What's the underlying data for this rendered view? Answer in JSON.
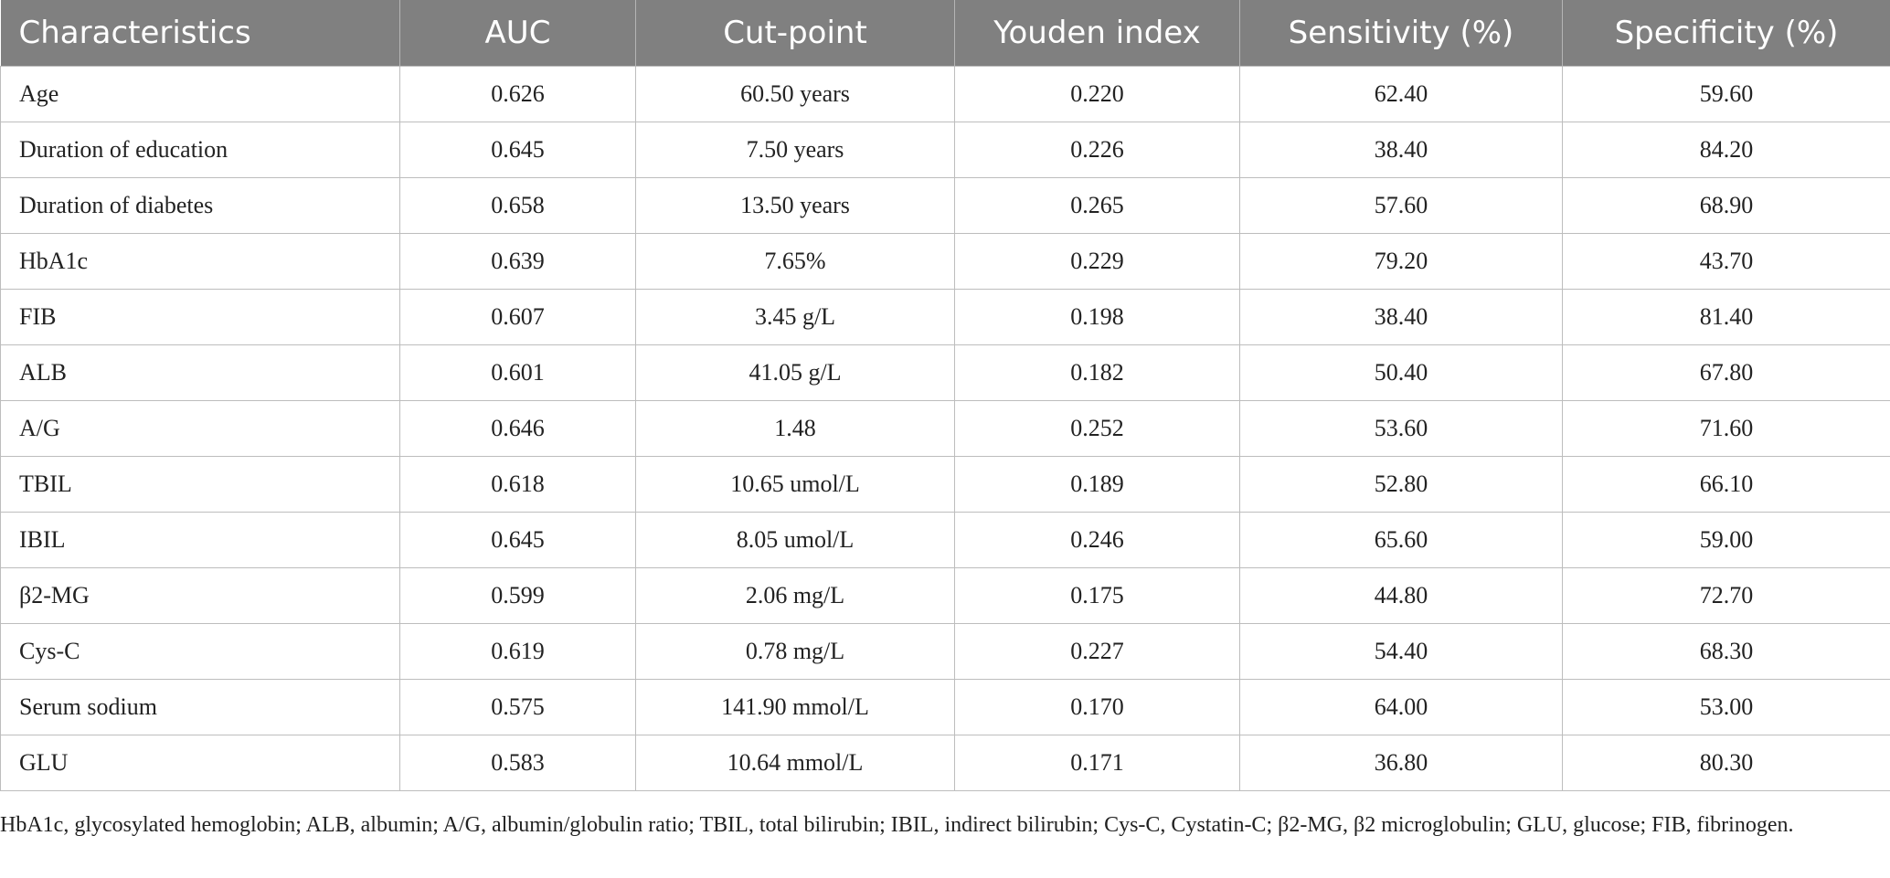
{
  "table": {
    "headers": [
      "Characteristics",
      "AUC",
      "Cut-point",
      "Youden index",
      "Sensitivity (%)",
      "Specificity (%)"
    ],
    "rows": [
      [
        "Age",
        "0.626",
        "60.50 years",
        "0.220",
        "62.40",
        "59.60"
      ],
      [
        "Duration of education",
        "0.645",
        "7.50 years",
        "0.226",
        "38.40",
        "84.20"
      ],
      [
        "Duration of diabetes",
        "0.658",
        "13.50 years",
        "0.265",
        "57.60",
        "68.90"
      ],
      [
        "HbA1c",
        "0.639",
        "7.65%",
        "0.229",
        "79.20",
        "43.70"
      ],
      [
        "FIB",
        "0.607",
        "3.45 g/L",
        "0.198",
        "38.40",
        "81.40"
      ],
      [
        "ALB",
        "0.601",
        "41.05 g/L",
        "0.182",
        "50.40",
        "67.80"
      ],
      [
        "A/G",
        "0.646",
        "1.48",
        "0.252",
        "53.60",
        "71.60"
      ],
      [
        "TBIL",
        "0.618",
        "10.65 umol/L",
        "0.189",
        "52.80",
        "66.10"
      ],
      [
        "IBIL",
        "0.645",
        "8.05 umol/L",
        "0.246",
        "65.60",
        "59.00"
      ],
      [
        "β2-MG",
        "0.599",
        "2.06 mg/L",
        "0.175",
        "44.80",
        "72.70"
      ],
      [
        "Cys-C",
        "0.619",
        "0.78 mg/L",
        "0.227",
        "54.40",
        "68.30"
      ],
      [
        "Serum sodium",
        "0.575",
        "141.90 mmol/L",
        "0.170",
        "64.00",
        "53.00"
      ],
      [
        "GLU",
        "0.583",
        "10.64 mmol/L",
        "0.171",
        "36.80",
        "80.30"
      ]
    ]
  },
  "footnote": "HbA1c, glycosylated hemoglobin; ALB, albumin; A/G, albumin/globulin ratio; TBIL, total bilirubin; IBIL, indirect bilirubin; Cys-C, Cystatin-C; β2-MG, β2 microglobulin; GLU, glucose; FIB, fibrinogen.",
  "colors": {
    "header_background": "#808080",
    "header_text": "#ffffff",
    "grid_line": "#bdbdbd",
    "body_text": "#222222"
  }
}
